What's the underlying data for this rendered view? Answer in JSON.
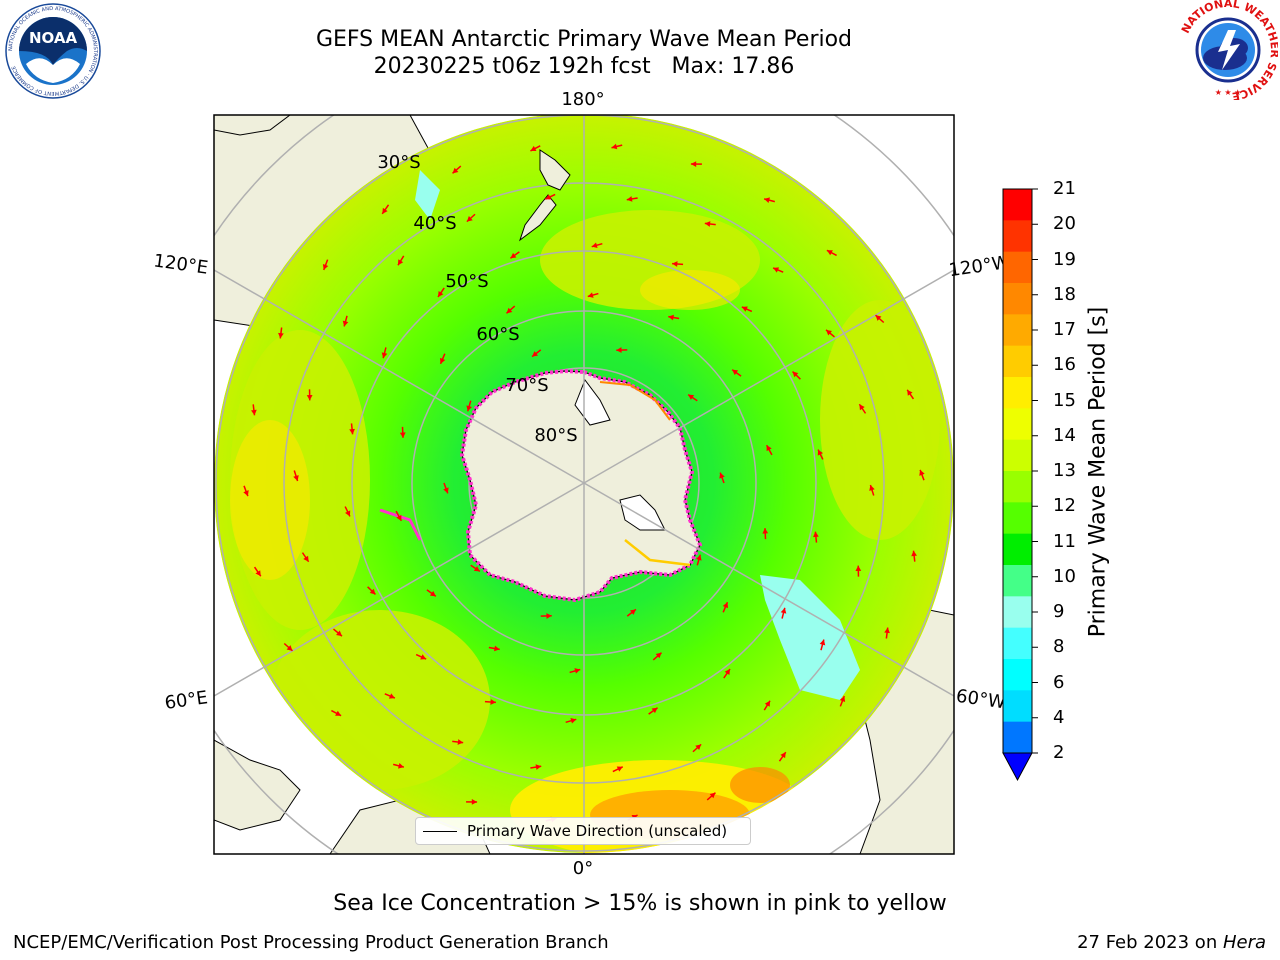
{
  "header": {
    "title_line1": "GEFS MEAN Antarctic Primary Wave Mean Period",
    "title_line2": "20230225 t06z 192h fcst   Max: 17.86"
  },
  "logos": {
    "noaa_text": "NOAA",
    "noaa_ring_text": "NATIONAL OCEANIC AND ATMOSPHERIC ADMINISTRATION · U.S. DEPARTMENT OF COMMERCE",
    "nws_ring_text": "NATIONAL WEATHER SERVICE"
  },
  "map": {
    "lon_labels": {
      "top": "180°",
      "bottom": "0°",
      "left_upper": "120°E",
      "left_lower": "60°E",
      "right_upper": "120°W",
      "right_lower": "60°W"
    },
    "lat_labels": [
      "30°S",
      "40°S",
      "50°S",
      "60°S",
      "70°S",
      "80°S"
    ],
    "legend_label": "Primary Wave Direction (unscaled)",
    "colors": {
      "land": "#efefdc",
      "ocean_base": "#c8f200",
      "arrow": "#ff0000",
      "ice_edge": "#ff33cc",
      "graticule": "#b0b0b0"
    }
  },
  "colorbar": {
    "label": "Primary Wave Mean Period [s]",
    "ticks": [
      "21",
      "20",
      "19",
      "18",
      "17",
      "16",
      "15",
      "14",
      "13",
      "12",
      "11",
      "10",
      "9",
      "8",
      "6",
      "4",
      "2"
    ],
    "colors": [
      "#ff0000",
      "#ff3300",
      "#ff6600",
      "#ff8800",
      "#ffaa00",
      "#ffcc00",
      "#ffee00",
      "#eeff00",
      "#ccff00",
      "#99ff00",
      "#55ff00",
      "#00ee00",
      "#44ff88",
      "#99ffee",
      "#44ffff",
      "#00ffff",
      "#00ddff",
      "#0077ff"
    ],
    "extend_color": "#0000ff"
  },
  "footer": {
    "note": "Sea Ice Concentration > 15% is shown in pink to yellow",
    "left": "NCEP/EMC/Verification Post Processing Product Generation Branch",
    "right_prefix": "27 Feb 2023 on ",
    "right_italic": "Hera"
  }
}
